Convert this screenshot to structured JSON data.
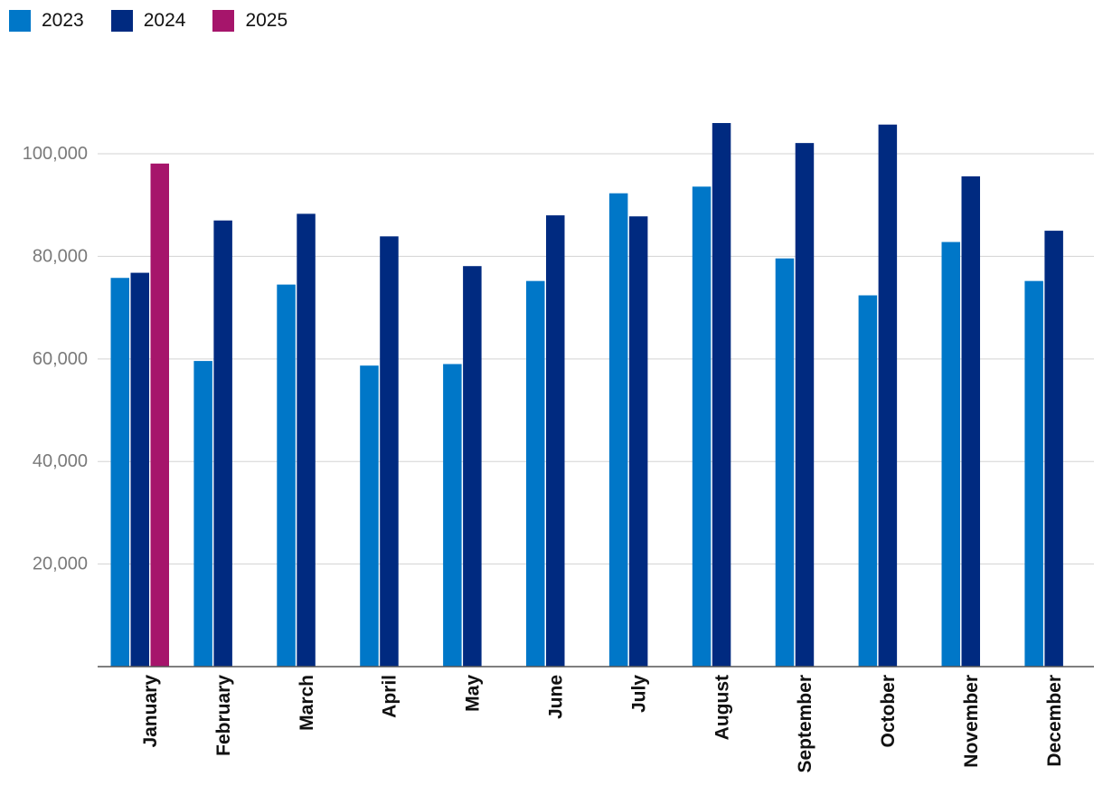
{
  "chart_data": {
    "type": "bar",
    "categories": [
      "January",
      "February",
      "March",
      "April",
      "May",
      "June",
      "July",
      "August",
      "September",
      "October",
      "November",
      "December"
    ],
    "series": [
      {
        "name": "2023",
        "color": "#0077c8",
        "values": [
          75800,
          59600,
          74500,
          58700,
          59000,
          75200,
          92300,
          93600,
          79600,
          72400,
          82800,
          75200
        ]
      },
      {
        "name": "2024",
        "color": "#002a80",
        "values": [
          76800,
          87000,
          88300,
          83900,
          78100,
          88000,
          87800,
          106000,
          102100,
          105700,
          95600,
          85000
        ]
      },
      {
        "name": "2025",
        "color": "#a6156b",
        "values": [
          98100,
          null,
          null,
          null,
          null,
          null,
          null,
          null,
          null,
          null,
          null,
          null
        ]
      }
    ],
    "y_ticks": [
      "20,000",
      "40,000",
      "60,000",
      "80,000",
      "100,000"
    ],
    "y_tick_values": [
      20000,
      40000,
      60000,
      80000,
      100000
    ],
    "ylim": [
      0,
      115000
    ],
    "grid": true,
    "legend_position": "top-left",
    "title": "",
    "xlabel": "",
    "ylabel": ""
  }
}
